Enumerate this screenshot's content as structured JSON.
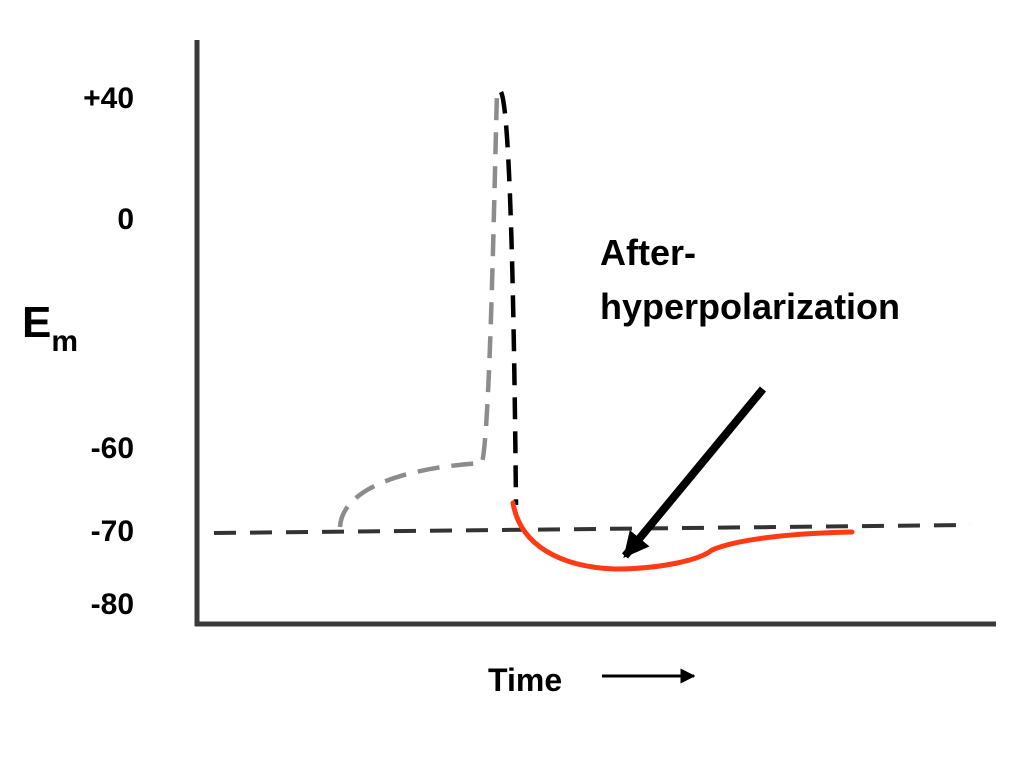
{
  "y_axis": {
    "label_main": "E",
    "label_sub": "m",
    "ticks": [
      "+40",
      "0",
      "-60",
      "-70",
      "-80"
    ]
  },
  "x_axis": {
    "label": "Time"
  },
  "annotation": {
    "line1": "After-",
    "line2": "hyperpolarization"
  },
  "colors": {
    "axis": "#3a3a3a",
    "threshold_dashed": "#808080",
    "spike_dashed": "#000000",
    "resting_dashed": "#333333",
    "after_hyperpolarization": "#ff3a14",
    "arrow": "#000000"
  }
}
